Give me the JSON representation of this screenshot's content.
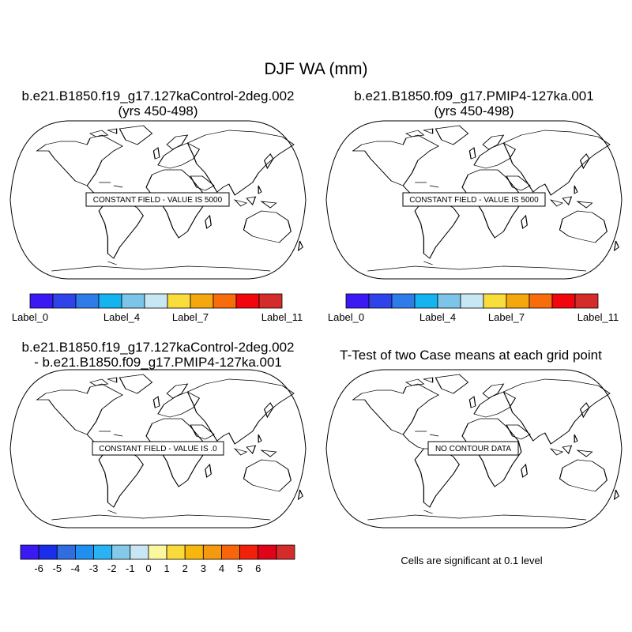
{
  "chart_data": {
    "type": "contour-map-panels",
    "title": "DJF WA (mm)",
    "panels": [
      {
        "id": "case1",
        "title_lines": [
          "b.e21.B1850.f19_g17.127kaControl-2deg.002",
          "(yrs 450-498)"
        ],
        "annotation": "CONSTANT FIELD - VALUE IS 5000",
        "field_value": 5000
      },
      {
        "id": "case2",
        "title_lines": [
          "b.e21.B1850.f09_g17.PMIP4-127ka.001",
          "(yrs 450-498)"
        ],
        "annotation": "CONSTANT FIELD - VALUE IS 5000",
        "field_value": 5000
      },
      {
        "id": "difference",
        "title_lines": [
          "b.e21.B1850.f19_g17.127kaControl-2deg.002",
          "- b.e21.B1850.f09_g17.PMIP4-127ka.001"
        ],
        "annotation": "CONSTANT FIELD - VALUE IS .0",
        "field_value": 0
      },
      {
        "id": "ttest",
        "title_lines": [
          "T-Test of two Case means at each grid point"
        ],
        "annotation": "NO CONTOUR DATA",
        "field_value": null
      }
    ],
    "colorbars": [
      {
        "id": "case-bar",
        "colors": [
          "#3a19f2",
          "#2f43ea",
          "#2e7ce9",
          "#15b3f0",
          "#7cc4e8",
          "#c8e6f4",
          "#f9dd3b",
          "#f5a70e",
          "#f86c0b",
          "#f1060d",
          "#d42b2b"
        ],
        "tick_labels": [
          "Label_0",
          "Label_4",
          "Label_7",
          "Label_11"
        ],
        "tick_positions": [
          0,
          4,
          7,
          11
        ]
      },
      {
        "id": "diff-bar",
        "colors": [
          "#3a19f2",
          "#1a2ee9",
          "#2f6de0",
          "#1f8ff0",
          "#28b4f4",
          "#85c9e9",
          "#c8e6f4",
          "#fcf6a0",
          "#fbda3c",
          "#f8b70c",
          "#f59a0e",
          "#f8650b",
          "#f3200c",
          "#e0041a",
          "#d42b2b"
        ],
        "tick_labels": [
          "-6",
          "-5",
          "-4",
          "-3",
          "-2",
          "-1",
          "0",
          "1",
          "2",
          "3",
          "4",
          "5",
          "6"
        ]
      }
    ],
    "note": "Cells are significant at 0.1 level"
  }
}
